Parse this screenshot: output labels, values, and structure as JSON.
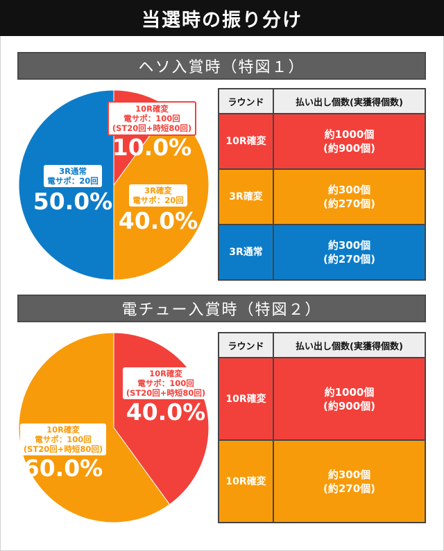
{
  "title": "当選時の振り分け",
  "colors": {
    "red": "#f2413b",
    "orange": "#f89b0a",
    "blue": "#0d7cc8"
  },
  "sections": [
    {
      "heading": "ヘソ入賞時（特図１）",
      "chart_data": {
        "type": "pie",
        "title": "ヘソ入賞時（特図１）",
        "slices": [
          {
            "label": "10R確変",
            "sub1": "電サポ：100回",
            "sub2": "(ST20回+時短80回)",
            "value": 10.0,
            "pct_label": "10.0%",
            "color": "#f2413b"
          },
          {
            "label": "3R確変",
            "sub1": "電サポ：20回",
            "sub2": "",
            "value": 40.0,
            "pct_label": "40.0%",
            "color": "#f89b0a"
          },
          {
            "label": "3R通常",
            "sub1": "電サポ：20回",
            "sub2": "",
            "value": 50.0,
            "pct_label": "50.0%",
            "color": "#0d7cc8"
          }
        ]
      },
      "table": {
        "headers": [
          "ラウンド",
          "払い出し個数(実獲得個数)"
        ],
        "rows": [
          {
            "round": "10R確変",
            "payout": "約1000個",
            "actual": "(約900個)",
            "color": "#f2413b"
          },
          {
            "round": "3R確変",
            "payout": "約300個",
            "actual": "(約270個)",
            "color": "#f89b0a"
          },
          {
            "round": "3R通常",
            "payout": "約300個",
            "actual": "(約270個)",
            "color": "#0d7cc8"
          }
        ]
      }
    },
    {
      "heading": "電チュー入賞時（特図２）",
      "chart_data": {
        "type": "pie",
        "title": "電チュー入賞時（特図２）",
        "slices": [
          {
            "label": "10R確変",
            "sub1": "電サポ：100回",
            "sub2": "(ST20回+時短80回)",
            "value": 40.0,
            "pct_label": "40.0%",
            "color": "#f2413b"
          },
          {
            "label": "10R確変",
            "sub1": "電サポ：100回",
            "sub2": "(ST20回+時短80回)",
            "value": 60.0,
            "pct_label": "60.0%",
            "color": "#f89b0a"
          }
        ]
      },
      "table": {
        "headers": [
          "ラウンド",
          "払い出し個数(実獲得個数)"
        ],
        "rows": [
          {
            "round": "10R確変",
            "payout": "約1000個",
            "actual": "(約900個)",
            "color": "#f2413b"
          },
          {
            "round": "10R確変",
            "payout": "約300個",
            "actual": "(約270個)",
            "color": "#f89b0a"
          }
        ]
      }
    }
  ]
}
